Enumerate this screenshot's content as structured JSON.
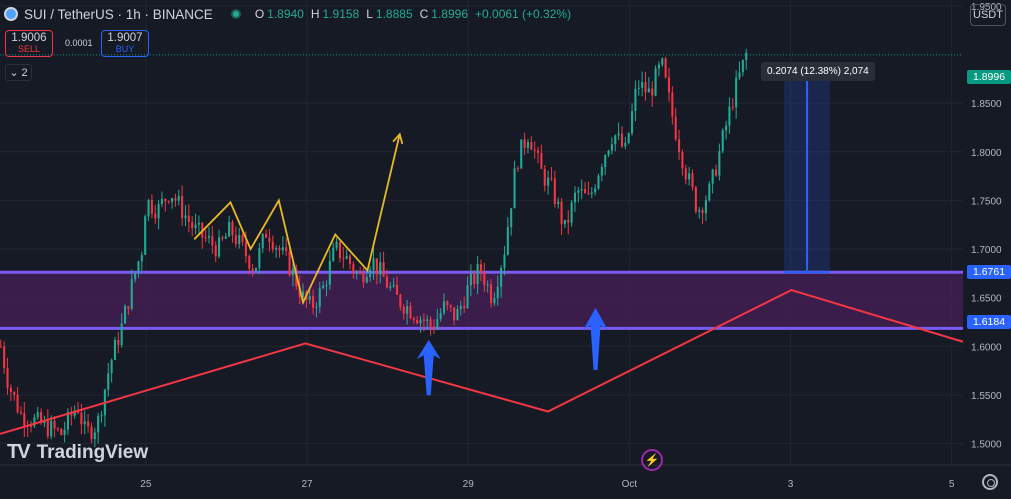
{
  "header": {
    "title": "SUI / TetherUS · 1h · BINANCE",
    "ohlc": [
      {
        "key": "O",
        "value": "1.8940"
      },
      {
        "key": "H",
        "value": "1.9158"
      },
      {
        "key": "L",
        "value": "1.8885"
      },
      {
        "key": "C",
        "value": "1.8996"
      }
    ],
    "change": "+0.0061 (+0.32%)"
  },
  "trade": {
    "sell_price": "1.9006",
    "sell_label": "SELL",
    "spread": "0.0001",
    "buy_price": "1.9007",
    "buy_label": "BUY"
  },
  "indicators_toggle": "2",
  "currency": "USDT",
  "logo_text": "TradingView",
  "measure_label": "0.2074 (12.38%) 2,074",
  "price_badges": {
    "last": "1.8996",
    "zone_top": "1.6761",
    "zone_bottom": "1.6184"
  },
  "colors": {
    "up": "#22ab94",
    "down": "#f23645",
    "zone_line": "#7b5cf2",
    "zone_fill": "#4a1f5a",
    "trend": "#f23645",
    "pattern": "#e8b923",
    "arrow": "#2962ff"
  },
  "chart_data": {
    "type": "candlestick",
    "symbol": "SUI / TetherUS",
    "interval": "1h",
    "exchange": "BINANCE",
    "y_ticks": [
      "1.9500",
      "1.8500",
      "1.8000",
      "1.7500",
      "1.7000",
      "1.6500",
      "1.6000",
      "1.5500",
      "1.5000"
    ],
    "x_ticks": [
      {
        "label": "25",
        "t": 0.0
      },
      {
        "label": "27",
        "t": 2.0
      },
      {
        "label": "29",
        "t": 4.0
      },
      {
        "label": "Oct",
        "t": 6.0
      },
      {
        "label": "3",
        "t": 8.0
      },
      {
        "label": "5",
        "t": 10.0
      }
    ],
    "y_range": [
      1.478,
      1.956
    ],
    "x_range": [
      -1.81,
      10.14
    ],
    "path_points": [
      [
        -1.8,
        1.6
      ],
      [
        -1.7,
        1.56
      ],
      [
        -1.55,
        1.53
      ],
      [
        -1.3,
        1.52
      ],
      [
        -1.05,
        1.51
      ],
      [
        -0.85,
        1.54
      ],
      [
        -0.75,
        1.51
      ],
      [
        -0.6,
        1.52
      ],
      [
        -0.45,
        1.58
      ],
      [
        -0.3,
        1.62
      ],
      [
        -0.15,
        1.67
      ],
      [
        -0.05,
        1.7
      ],
      [
        0.0,
        1.75
      ],
      [
        0.15,
        1.74
      ],
      [
        0.3,
        1.76
      ],
      [
        0.45,
        1.74
      ],
      [
        0.6,
        1.72
      ],
      [
        0.75,
        1.71
      ],
      [
        0.9,
        1.7
      ],
      [
        1.05,
        1.72
      ],
      [
        1.2,
        1.7
      ],
      [
        1.35,
        1.68
      ],
      [
        1.5,
        1.72
      ],
      [
        1.65,
        1.7
      ],
      [
        1.8,
        1.68
      ],
      [
        1.95,
        1.65
      ],
      [
        2.05,
        1.64
      ],
      [
        2.2,
        1.66
      ],
      [
        2.35,
        1.7
      ],
      [
        2.5,
        1.69
      ],
      [
        2.65,
        1.67
      ],
      [
        2.8,
        1.69
      ],
      [
        2.95,
        1.67
      ],
      [
        3.1,
        1.65
      ],
      [
        3.25,
        1.64
      ],
      [
        3.4,
        1.63
      ],
      [
        3.55,
        1.62
      ],
      [
        3.7,
        1.64
      ],
      [
        3.85,
        1.63
      ],
      [
        4.0,
        1.66
      ],
      [
        4.15,
        1.68
      ],
      [
        4.3,
        1.65
      ],
      [
        4.45,
        1.7
      ],
      [
        4.6,
        1.79
      ],
      [
        4.75,
        1.82
      ],
      [
        4.9,
        1.78
      ],
      [
        5.05,
        1.76
      ],
      [
        5.2,
        1.72
      ],
      [
        5.35,
        1.76
      ],
      [
        5.5,
        1.75
      ],
      [
        5.65,
        1.79
      ],
      [
        5.8,
        1.82
      ],
      [
        5.95,
        1.8
      ],
      [
        6.1,
        1.87
      ],
      [
        6.25,
        1.86
      ],
      [
        6.4,
        1.89
      ],
      [
        6.55,
        1.83
      ],
      [
        6.7,
        1.78
      ],
      [
        6.85,
        1.74
      ],
      [
        7.0,
        1.76
      ],
      [
        7.15,
        1.81
      ],
      [
        7.3,
        1.86
      ],
      [
        7.45,
        1.9
      ]
    ],
    "pattern_points": [
      [
        0.6,
        1.71
      ],
      [
        1.05,
        1.748
      ],
      [
        1.3,
        1.7
      ],
      [
        1.65,
        1.75
      ],
      [
        1.95,
        1.645
      ],
      [
        2.35,
        1.715
      ],
      [
        2.75,
        1.678
      ],
      [
        3.15,
        1.818
      ]
    ],
    "zone": {
      "top": 1.6761,
      "bottom": 1.6184
    },
    "trendline": [
      [
        -1.81,
        1.51
      ],
      [
        1.98,
        1.603
      ],
      [
        4.99,
        1.533
      ],
      [
        8.01,
        1.6578
      ],
      [
        10.14,
        1.6047
      ]
    ],
    "measure": {
      "t1": 7.92,
      "t2": 8.49,
      "from": 1.6761,
      "to": 1.8835,
      "change": "0.2074 (12.38%) 2,074"
    },
    "arrows_up": [
      [
        3.51,
        1.5496,
        1.6066
      ],
      [
        5.58,
        1.5756,
        1.6397
      ]
    ]
  }
}
